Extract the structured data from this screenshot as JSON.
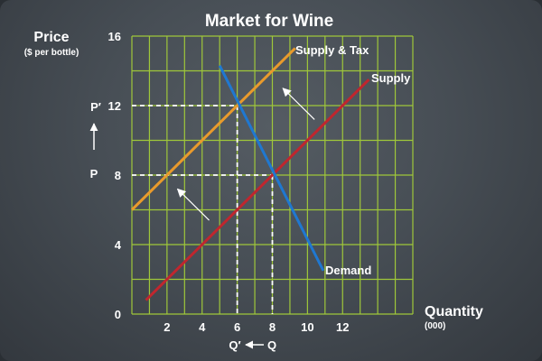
{
  "colors": {
    "grid": "#9fc73a",
    "supply": "#c0262e",
    "supply_tax": "#e99a2c",
    "demand": "#1f78d1",
    "guide": "#ffffff",
    "text": "#ffffff"
  },
  "chart_data": {
    "type": "line",
    "title": "Market for Wine",
    "ylabel": "Price",
    "ylabel_sub": "($ per bottle)",
    "xlabel": "Quantity",
    "xlabel_sub": "(000)",
    "xlim": [
      0,
      16
    ],
    "ylim": [
      0,
      16
    ],
    "xticks": [
      2,
      4,
      6,
      8,
      10,
      12
    ],
    "yticks": [
      0,
      4,
      8,
      12,
      16
    ],
    "grid": true,
    "series": [
      {
        "name": "Supply & Tax",
        "color": "#e99a2c",
        "x": [
          0,
          9.3
        ],
        "y": [
          6,
          15.3
        ]
      },
      {
        "name": "Supply",
        "color": "#c0262e",
        "x": [
          0.8,
          13.5
        ],
        "y": [
          0.8,
          13.5
        ]
      },
      {
        "name": "Demand",
        "color": "#1f78d1",
        "x": [
          5,
          10.9
        ],
        "y": [
          14.3,
          2.5
        ]
      }
    ],
    "guides": [
      {
        "from": [
          0,
          12
        ],
        "to": [
          6,
          12
        ]
      },
      {
        "from": [
          6,
          12
        ],
        "to": [
          6,
          0
        ]
      },
      {
        "from": [
          0,
          8
        ],
        "to": [
          8,
          8
        ]
      },
      {
        "from": [
          8,
          8
        ],
        "to": [
          8,
          0
        ]
      }
    ],
    "shift_arrows": [
      {
        "from": [
          10.4,
          11.2
        ],
        "to": [
          8.6,
          13.0
        ]
      },
      {
        "from": [
          4.4,
          5.4
        ],
        "to": [
          2.6,
          7.2
        ]
      }
    ],
    "annotations": {
      "p_prime": "P′",
      "p": "P",
      "q_prime": "Q′",
      "q": "Q"
    }
  }
}
